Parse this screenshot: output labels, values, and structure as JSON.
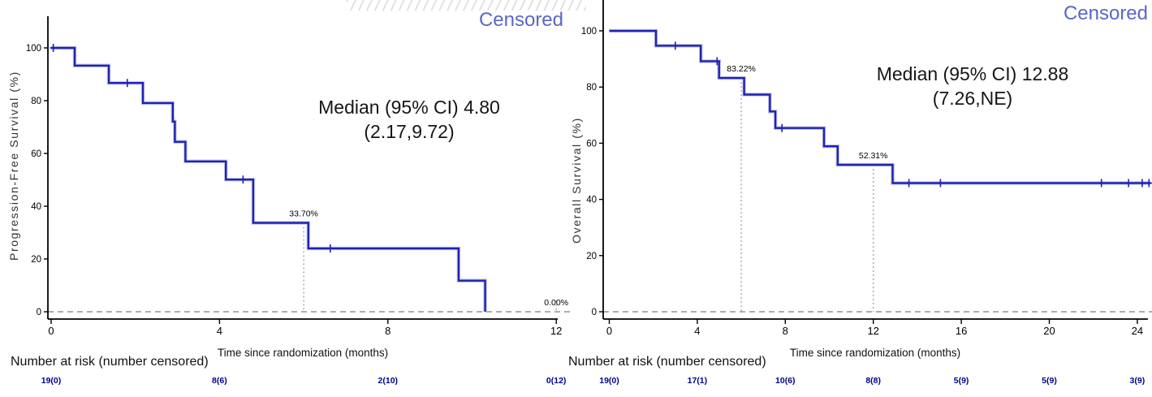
{
  "figure": {
    "background": "#ffffff",
    "curve_color": "#1f22ae",
    "censored_label_color": "#5b67c8",
    "at_risk_value_color": "#00008b"
  },
  "chart_data": [
    {
      "type": "line",
      "subtype": "kaplan-meier-step",
      "legend_label": "Censored",
      "median_label": [
        "Median (95% CI) 4.80",
        "(2.17,9.72)"
      ],
      "ylabel": "Progression-Free Survival (%)",
      "xlabel": "Time since randomization (months)",
      "ylim": [
        0,
        100
      ],
      "xlim": [
        0,
        12.4
      ],
      "x_ticks": [
        0,
        4,
        8,
        12
      ],
      "y_ticks": [
        0,
        20,
        40,
        60,
        80,
        100
      ],
      "grid": false,
      "legend_position": "top-right",
      "steps": [
        [
          0,
          100
        ],
        [
          0.56,
          93.3
        ],
        [
          1.37,
          86.7
        ],
        [
          2.18,
          79.1
        ],
        [
          2.89,
          72.1
        ],
        [
          2.94,
          64.4
        ],
        [
          3.19,
          57.0
        ],
        [
          4.15,
          50.1
        ],
        [
          4.8,
          33.7
        ],
        [
          6.11,
          24.0
        ],
        [
          9.68,
          11.8
        ],
        [
          10.31,
          0
        ]
      ],
      "censors": [
        [
          0.05,
          100
        ],
        [
          1.81,
          86.7
        ],
        [
          4.56,
          50.1
        ],
        [
          6.63,
          24.0
        ]
      ],
      "annotations": [
        {
          "x": 6,
          "y": 33.7,
          "text": "33.70%"
        },
        {
          "x": 12,
          "y": 0,
          "text": "0.00%"
        }
      ],
      "at_risk_label": "Number at risk (number censored)",
      "at_risk": [
        {
          "month": 0,
          "value": "19(0)"
        },
        {
          "month": 4,
          "value": "8(6)"
        },
        {
          "month": 8,
          "value": "2(10)"
        },
        {
          "month": 12,
          "value": "0(12)"
        }
      ]
    },
    {
      "type": "line",
      "subtype": "kaplan-meier-step",
      "legend_label": "Censored",
      "median_label": [
        "Median (95% CI) 12.88",
        "(7.26,NE)"
      ],
      "ylabel": "Overall Survival (%)",
      "xlabel": "Time since randomization (months)",
      "ylim": [
        0,
        100
      ],
      "xlim": [
        0,
        24.7
      ],
      "x_ticks": [
        0,
        4,
        8,
        12,
        16,
        20,
        24
      ],
      "y_ticks": [
        0,
        20,
        40,
        60,
        80,
        100
      ],
      "grid": false,
      "legend_position": "top-right",
      "steps": [
        [
          0,
          100
        ],
        [
          2.12,
          94.7
        ],
        [
          4.16,
          89.2
        ],
        [
          4.99,
          83.2
        ],
        [
          6.13,
          77.3
        ],
        [
          7.3,
          71.3
        ],
        [
          7.55,
          65.4
        ],
        [
          9.76,
          58.9
        ],
        [
          10.38,
          52.3
        ],
        [
          12.88,
          45.8
        ]
      ],
      "tail_end_month": 24.6,
      "censors": [
        [
          3.0,
          94.7
        ],
        [
          4.9,
          89.2
        ],
        [
          7.85,
          65.4
        ],
        [
          13.62,
          45.8
        ],
        [
          15.05,
          45.8
        ],
        [
          22.37,
          45.8
        ],
        [
          23.6,
          45.8
        ],
        [
          24.22,
          45.8
        ],
        [
          24.53,
          45.8
        ]
      ],
      "annotations": [
        {
          "x": 6,
          "y": 83.22,
          "text": "83.22%"
        },
        {
          "x": 12,
          "y": 52.31,
          "text": "52.31%"
        }
      ],
      "at_risk_label": "Number at risk (number censored)",
      "at_risk": [
        {
          "month": 0,
          "value": "19(0)"
        },
        {
          "month": 4,
          "value": "17(1)"
        },
        {
          "month": 8,
          "value": "10(6)"
        },
        {
          "month": 12,
          "value": "8(8)"
        },
        {
          "month": 16,
          "value": "5(9)"
        },
        {
          "month": 20,
          "value": "5(9)"
        },
        {
          "month": 24,
          "value": "3(9)"
        }
      ]
    }
  ]
}
